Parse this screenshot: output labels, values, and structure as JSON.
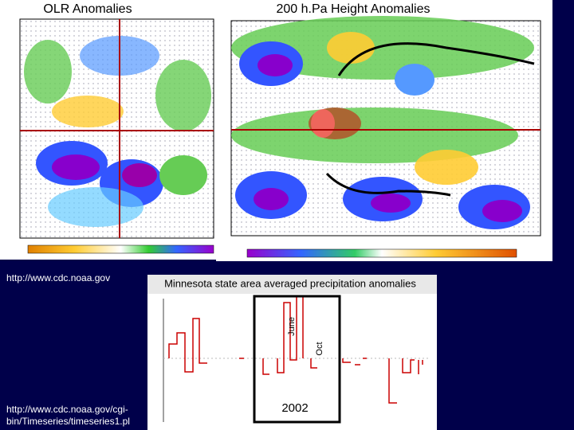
{
  "slide": {
    "left_map": {
      "title": "OLR Anomalies"
    },
    "right_map": {
      "title": "200 h.Pa Height Anomalies"
    },
    "source_link": "http://www.cdc.noaa.gov",
    "precip_chart": {
      "title": "Minnesota state area averaged precipitation anomalies",
      "label_june": "June",
      "label_oct": "Oct",
      "year": "2002"
    },
    "timeseries_link": [
      "http://www.cdc.noaa.gov/cgi-",
      "bin/Timeseries/timeseries1.pl"
    ]
  }
}
